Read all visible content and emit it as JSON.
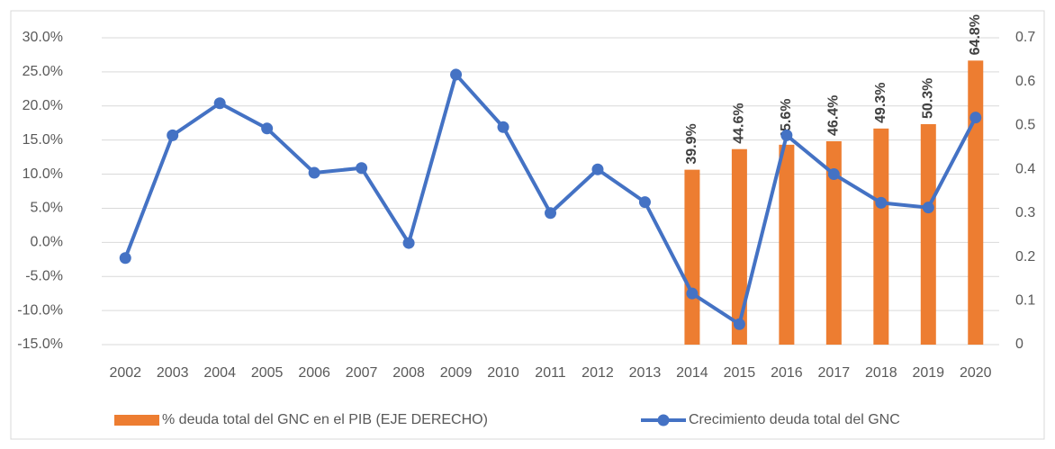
{
  "chart_data": {
    "type": "bar_line",
    "categories": [
      "2002",
      "2003",
      "2004",
      "2005",
      "2006",
      "2007",
      "2008",
      "2009",
      "2010",
      "2011",
      "2012",
      "2013",
      "2014",
      "2015",
      "2016",
      "2017",
      "2018",
      "2019",
      "2020"
    ],
    "series": [
      {
        "name": "% deuda total del GNC en el PIB (EJE DERECHO)",
        "type": "bar",
        "axis": "y2",
        "color": "#ed7d31",
        "values": [
          null,
          null,
          null,
          null,
          null,
          null,
          null,
          null,
          null,
          null,
          null,
          null,
          0.399,
          0.446,
          0.456,
          0.464,
          0.493,
          0.503,
          0.648
        ],
        "value_labels": [
          null,
          null,
          null,
          null,
          null,
          null,
          null,
          null,
          null,
          null,
          null,
          null,
          "39.9%",
          "44.6%",
          "45.6%",
          "46.4%",
          "49.3%",
          "50.3%",
          "64.8%"
        ]
      },
      {
        "name": "Crecimiento deuda total del GNC",
        "type": "line",
        "axis": "y",
        "color": "#4472c4",
        "values": [
          -2.3,
          15.7,
          20.4,
          16.7,
          10.2,
          10.9,
          -0.1,
          24.6,
          16.9,
          4.3,
          10.7,
          5.9,
          -7.5,
          -12.0,
          15.7,
          10.0,
          5.8,
          5.1,
          18.3
        ]
      }
    ],
    "ylim": [
      -15,
      30
    ],
    "yticks": [
      {
        "value": -15,
        "label": "-15.0%"
      },
      {
        "value": -10,
        "label": "-10.0%"
      },
      {
        "value": -5,
        "label": "-5.0%"
      },
      {
        "value": 0,
        "label": "0.0%"
      },
      {
        "value": 5,
        "label": "5.0%"
      },
      {
        "value": 10,
        "label": "10.0%"
      },
      {
        "value": 15,
        "label": "15.0%"
      },
      {
        "value": 20,
        "label": "20.0%"
      },
      {
        "value": 25,
        "label": "25.0%"
      },
      {
        "value": 30,
        "label": "30.0%"
      }
    ],
    "y2lim": [
      0,
      0.7
    ],
    "y2ticks": [
      0,
      0.1,
      0.2,
      0.3,
      0.4,
      0.5,
      0.6,
      0.7
    ],
    "grid": true,
    "legend": "bottom"
  }
}
